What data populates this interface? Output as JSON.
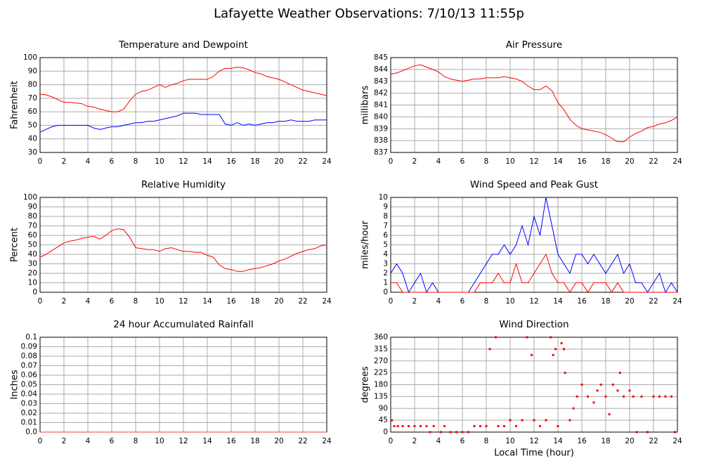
{
  "title": "Lafayette Weather Observations: 7/10/13 11:55p",
  "chart_data": [
    {
      "type": "line",
      "title": "Temperature and Dewpoint",
      "ylabel": "Fahrenheit",
      "x": [
        0,
        0.5,
        1,
        1.5,
        2,
        2.5,
        3,
        3.5,
        4,
        4.5,
        5,
        5.5,
        6,
        6.5,
        7,
        7.5,
        8,
        8.5,
        9,
        9.5,
        10,
        10.5,
        11,
        11.5,
        12,
        12.5,
        13,
        13.5,
        14,
        14.5,
        15,
        15.5,
        16,
        16.5,
        17,
        17.5,
        18,
        18.5,
        19,
        19.5,
        20,
        20.5,
        21,
        21.5,
        22,
        22.5,
        23,
        23.5,
        24
      ],
      "series": [
        {
          "color": "#ff0000",
          "values": [
            73,
            72.5,
            71,
            69,
            67,
            67,
            66.5,
            66,
            64,
            63.5,
            62,
            61,
            60,
            60,
            62,
            68,
            73,
            75,
            76,
            78,
            80,
            78,
            80,
            81,
            83,
            84,
            84,
            84,
            84,
            86,
            90,
            92,
            92,
            93,
            92.5,
            91,
            89,
            88,
            86,
            85,
            84,
            82,
            80,
            78,
            76,
            75,
            74,
            73,
            72
          ]
        },
        {
          "color": "#0000ff",
          "values": [
            45,
            47,
            49,
            50,
            50,
            50,
            50,
            50,
            50,
            48,
            47,
            48,
            49,
            49,
            50,
            51,
            52,
            52,
            53,
            53,
            54,
            55,
            56,
            57,
            59,
            59,
            59,
            58,
            58,
            58,
            58,
            51,
            50,
            52,
            50,
            51,
            50,
            51,
            52,
            52,
            53,
            53,
            54,
            53,
            53,
            53,
            54,
            54,
            54
          ]
        }
      ],
      "xlim": [
        0,
        24
      ],
      "ylim": [
        30,
        100
      ],
      "xticks": [
        0,
        2,
        4,
        6,
        8,
        10,
        12,
        14,
        16,
        18,
        20,
        22,
        24
      ],
      "yticks": [
        30,
        40,
        50,
        60,
        70,
        80,
        90,
        100
      ],
      "grid": true
    },
    {
      "type": "line",
      "title": "Air Pressure",
      "ylabel": "millibars",
      "x": [
        0,
        0.5,
        1,
        1.5,
        2,
        2.5,
        3,
        3.5,
        4,
        4.5,
        5,
        5.5,
        6,
        6.5,
        7,
        7.5,
        8,
        8.5,
        9,
        9.5,
        10,
        10.5,
        11,
        11.5,
        12,
        12.5,
        13,
        13.5,
        14,
        14.5,
        15,
        15.5,
        16,
        16.5,
        17,
        17.5,
        18,
        18.5,
        19,
        19.5,
        20,
        20.5,
        21,
        21.5,
        22,
        22.5,
        23,
        23.5,
        24
      ],
      "series": [
        {
          "color": "#ff0000",
          "values": [
            843.6,
            843.7,
            843.9,
            844.1,
            844.3,
            844.4,
            844.2,
            844,
            843.8,
            843.4,
            843.2,
            843.1,
            843,
            843.1,
            843.2,
            843.2,
            843.3,
            843.3,
            843.3,
            843.4,
            843.3,
            843.2,
            843,
            842.6,
            842.3,
            842.3,
            842.6,
            842.2,
            841.2,
            840.6,
            839.8,
            839.3,
            839,
            838.9,
            838.8,
            838.7,
            838.5,
            838.2,
            837.9,
            837.9,
            838.3,
            838.6,
            838.8,
            839.1,
            839.2,
            839.4,
            839.5,
            839.7,
            840
          ]
        }
      ],
      "xlim": [
        0,
        24
      ],
      "ylim": [
        837,
        845
      ],
      "xticks": [
        0,
        2,
        4,
        6,
        8,
        10,
        12,
        14,
        16,
        18,
        20,
        22,
        24
      ],
      "yticks": [
        837,
        838,
        839,
        840,
        841,
        842,
        843,
        844,
        845
      ],
      "grid": true
    },
    {
      "type": "line",
      "title": "Relative Humidity",
      "ylabel": "Percent",
      "x": [
        0,
        0.5,
        1,
        1.5,
        2,
        2.5,
        3,
        3.5,
        4,
        4.5,
        5,
        5.5,
        6,
        6.5,
        7,
        7.5,
        8,
        8.5,
        9,
        9.5,
        10,
        10.5,
        11,
        11.5,
        12,
        12.5,
        13,
        13.5,
        14,
        14.5,
        15,
        15.5,
        16,
        16.5,
        17,
        17.5,
        18,
        18.5,
        19,
        19.5,
        20,
        20.5,
        21,
        21.5,
        22,
        22.5,
        23,
        23.5,
        24
      ],
      "series": [
        {
          "color": "#ff0000",
          "values": [
            37,
            40,
            44,
            48,
            52,
            54,
            55,
            57,
            58,
            59,
            56,
            60,
            65,
            67,
            66,
            58,
            47,
            46,
            45,
            45,
            43,
            46,
            47,
            45,
            43,
            43,
            42,
            42,
            39,
            37,
            29,
            25,
            24,
            22,
            22,
            24,
            25,
            26,
            28,
            30,
            33,
            35,
            38,
            41,
            43,
            45,
            46,
            49,
            50
          ]
        }
      ],
      "xlim": [
        0,
        24
      ],
      "ylim": [
        0,
        100
      ],
      "xticks": [
        0,
        2,
        4,
        6,
        8,
        10,
        12,
        14,
        16,
        18,
        20,
        22,
        24
      ],
      "yticks": [
        0,
        10,
        20,
        30,
        40,
        50,
        60,
        70,
        80,
        90,
        100
      ],
      "grid": true
    },
    {
      "type": "line",
      "title": "Wind Speed and Peak Gust",
      "ylabel": "miles/hour",
      "x": [
        0,
        0.5,
        1,
        1.5,
        2,
        2.5,
        3,
        3.5,
        4,
        4.5,
        5,
        5.5,
        6,
        6.5,
        7,
        7.5,
        8,
        8.5,
        9,
        9.5,
        10,
        10.5,
        11,
        11.5,
        12,
        12.5,
        13,
        13.5,
        14,
        14.5,
        15,
        15.5,
        16,
        16.5,
        17,
        17.5,
        18,
        18.5,
        19,
        19.5,
        20,
        20.5,
        21,
        21.5,
        22,
        22.5,
        23,
        23.5,
        24
      ],
      "series": [
        {
          "color": "#0000ff",
          "values": [
            2,
            3,
            2,
            0,
            1,
            2,
            0,
            1,
            0,
            0,
            0,
            0,
            0,
            0,
            1,
            2,
            3,
            4,
            4,
            5,
            4,
            5,
            7,
            5,
            8,
            6,
            10,
            7,
            4,
            3,
            2,
            4,
            4,
            3,
            4,
            3,
            2,
            3,
            4,
            2,
            3,
            1,
            1,
            0,
            1,
            2,
            0,
            1,
            0
          ]
        },
        {
          "color": "#ff0000",
          "values": [
            1,
            1,
            0,
            0,
            0,
            0,
            0,
            0,
            0,
            0,
            0,
            0,
            0,
            0,
            0,
            1,
            1,
            1,
            2,
            1,
            1,
            3,
            1,
            1,
            2,
            3,
            4,
            2,
            1,
            1,
            0,
            1,
            1,
            0,
            1,
            1,
            1,
            0,
            1,
            0,
            0,
            0,
            0,
            0,
            0,
            0,
            0,
            0,
            0
          ]
        }
      ],
      "xlim": [
        0,
        24
      ],
      "ylim": [
        0,
        10
      ],
      "xticks": [
        0,
        2,
        4,
        6,
        8,
        10,
        12,
        14,
        16,
        18,
        20,
        22,
        24
      ],
      "yticks": [
        0,
        1,
        2,
        3,
        4,
        5,
        6,
        7,
        8,
        9,
        10
      ],
      "grid": true
    },
    {
      "type": "line",
      "title": "24 hour Accumulated Rainfall",
      "ylabel": "Inches",
      "x": [
        0,
        24
      ],
      "series": [
        {
          "color": "#ff3333",
          "values": [
            0,
            0
          ]
        }
      ],
      "xlim": [
        0,
        24
      ],
      "ylim": [
        0,
        0.1
      ],
      "xticks": [
        0,
        2,
        4,
        6,
        8,
        10,
        12,
        14,
        16,
        18,
        20,
        22,
        24
      ],
      "yticks": [
        {
          "value": 0,
          "label": "0.0"
        },
        0.01,
        0.02,
        0.03,
        0.04,
        0.05,
        0.06,
        0.07,
        0.08,
        0.09,
        0.1
      ],
      "grid": true
    },
    {
      "type": "scatter",
      "title": "Wind Direction",
      "ylabel": "degrees",
      "xlabel": "Local Time (hour)",
      "x": [
        0.1,
        0.3,
        0.6,
        1,
        1.5,
        2,
        2.5,
        3,
        3.3,
        3.6,
        4.2,
        4.5,
        5,
        5.5,
        6,
        6.5,
        7,
        7.5,
        8,
        8.3,
        8.8,
        9,
        9.5,
        10,
        10.5,
        11,
        11.4,
        11.8,
        12,
        12.5,
        13,
        13.4,
        13.6,
        13.8,
        14,
        14.3,
        14.5,
        14.6,
        15,
        15.3,
        15.6,
        16,
        16.5,
        17,
        17.3,
        17.6,
        18,
        18.3,
        18.6,
        19,
        19.2,
        19.5,
        20,
        20.3,
        20.6,
        21,
        21.5,
        22,
        22.5,
        23,
        23.5,
        23.8
      ],
      "series": [
        {
          "color": "#ff0000",
          "values": [
            45,
            22.5,
            22.5,
            22.5,
            22.5,
            22.5,
            22.5,
            22.5,
            0,
            22.5,
            0,
            22.5,
            0,
            0,
            0,
            0,
            22.5,
            22.5,
            22.5,
            315,
            360,
            22.5,
            22.5,
            45,
            22.5,
            45,
            360,
            292.5,
            45,
            22.5,
            45,
            360,
            292.5,
            315,
            22.5,
            337.5,
            315,
            225,
            45,
            90,
            135,
            180,
            135,
            112.5,
            157.5,
            180,
            135,
            67.5,
            180,
            157.5,
            225,
            135,
            157.5,
            135,
            0,
            135,
            0,
            135,
            135,
            135,
            135,
            0
          ]
        }
      ],
      "xlim": [
        0,
        24
      ],
      "ylim": [
        0,
        360
      ],
      "xticks": [
        0,
        2,
        4,
        6,
        8,
        10,
        12,
        14,
        16,
        18,
        20,
        22,
        24
      ],
      "yticks": [
        0,
        45,
        90,
        135,
        180,
        225,
        270,
        315,
        360
      ],
      "grid": true
    }
  ]
}
